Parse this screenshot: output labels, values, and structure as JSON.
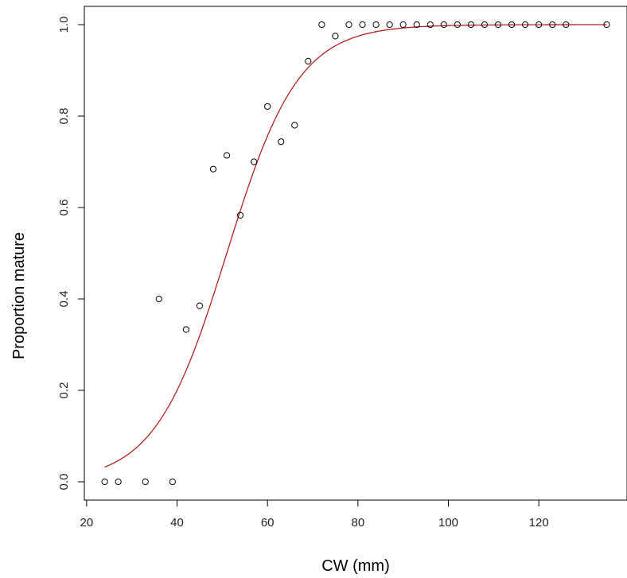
{
  "chart_data": {
    "type": "scatter",
    "title": "",
    "xlabel": "CW (mm)",
    "ylabel": "Proportion  mature",
    "xlim": [
      19.5,
      139.5
    ],
    "ylim": [
      -0.04,
      1.04
    ],
    "xticks": [
      20,
      40,
      60,
      80,
      100,
      120
    ],
    "xtick_labels": [
      "20",
      "40",
      "60",
      "80",
      "100",
      "120"
    ],
    "yticks": [
      0.0,
      0.2,
      0.4,
      0.6,
      0.8,
      1.0
    ],
    "ytick_labels": [
      "0.0",
      "0.2",
      "0.4",
      "0.6",
      "0.8",
      "1.0"
    ],
    "grid": false,
    "series": [
      {
        "marker": "open-circle",
        "color": "#000000",
        "points": [
          [
            24,
            0.0
          ],
          [
            27,
            0.0
          ],
          [
            33,
            0.0
          ],
          [
            36,
            0.4
          ],
          [
            39,
            0.0
          ],
          [
            42,
            0.333
          ],
          [
            45,
            0.385
          ],
          [
            48,
            0.684
          ],
          [
            51,
            0.714
          ],
          [
            54,
            0.583
          ],
          [
            57,
            0.7
          ],
          [
            60,
            0.821
          ],
          [
            63,
            0.744
          ],
          [
            66,
            0.78
          ],
          [
            69,
            0.92
          ],
          [
            72,
            1.0
          ],
          [
            75,
            0.975
          ],
          [
            78,
            1.0
          ],
          [
            81,
            1.0
          ],
          [
            84,
            1.0
          ],
          [
            87,
            1.0
          ],
          [
            90,
            1.0
          ],
          [
            93,
            1.0
          ],
          [
            96,
            1.0
          ],
          [
            99,
            1.0
          ],
          [
            102,
            1.0
          ],
          [
            105,
            1.0
          ],
          [
            108,
            1.0
          ],
          [
            111,
            1.0
          ],
          [
            114,
            1.0
          ],
          [
            117,
            1.0
          ],
          [
            120,
            1.0
          ],
          [
            123,
            1.0
          ],
          [
            126,
            1.0
          ],
          [
            135,
            1.0
          ]
        ]
      },
      {
        "line": "fitted-logistic",
        "color": "#b22222",
        "x_range": [
          24,
          135
        ],
        "inflection_x": 51.0,
        "slope": 0.126
      }
    ]
  }
}
